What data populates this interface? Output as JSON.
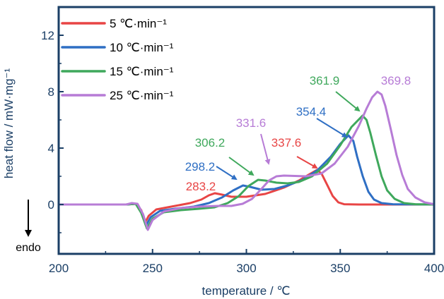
{
  "chart_data": {
    "type": "line",
    "xlabel": "temperature / ℃",
    "ylabel": "heat flow / mW·mg⁻¹",
    "xlim": [
      200,
      400
    ],
    "ylim": [
      -3.5,
      14
    ],
    "x_ticks": [
      "200",
      "250",
      "300",
      "350",
      "400"
    ],
    "y_ticks": [
      "0",
      "4",
      "8",
      "12"
    ],
    "grid": false,
    "legend_position": "top-left",
    "endo_label": "endo",
    "colors": {
      "axis": "#1b3f66",
      "s5": "#e84545",
      "s10": "#2f6fc4",
      "s15": "#3fa85c",
      "s25": "#b77cd6"
    },
    "series": [
      {
        "name": "5 ℃·min⁻¹",
        "color": "#e84545",
        "points": [
          [
            200,
            0
          ],
          [
            236,
            0
          ],
          [
            241,
            0.05
          ],
          [
            244,
            -0.4
          ],
          [
            246,
            -1.3
          ],
          [
            248,
            -0.8
          ],
          [
            252,
            -0.35
          ],
          [
            260,
            -0.15
          ],
          [
            270,
            0.1
          ],
          [
            276,
            0.35
          ],
          [
            280,
            0.65
          ],
          [
            283.2,
            0.8
          ],
          [
            287,
            0.7
          ],
          [
            292,
            0.55
          ],
          [
            300,
            0.55
          ],
          [
            310,
            0.75
          ],
          [
            320,
            1.2
          ],
          [
            328,
            1.7
          ],
          [
            333,
            2.1
          ],
          [
            337.6,
            2.45
          ],
          [
            340,
            2.2
          ],
          [
            343,
            1.4
          ],
          [
            346,
            0.6
          ],
          [
            349,
            0.15
          ],
          [
            352,
            0.02
          ],
          [
            360,
            0
          ],
          [
            400,
            0
          ]
        ]
      },
      {
        "name": "10 ℃·min⁻¹",
        "color": "#2f6fc4",
        "points": [
          [
            200,
            0
          ],
          [
            236,
            0
          ],
          [
            241,
            0.05
          ],
          [
            244,
            -0.5
          ],
          [
            246.5,
            -1.5
          ],
          [
            249,
            -0.9
          ],
          [
            254,
            -0.45
          ],
          [
            262,
            -0.3
          ],
          [
            272,
            -0.15
          ],
          [
            280,
            0.1
          ],
          [
            287,
            0.5
          ],
          [
            293,
            1
          ],
          [
            298.2,
            1.35
          ],
          [
            302,
            1.25
          ],
          [
            308,
            1.05
          ],
          [
            315,
            1.1
          ],
          [
            322,
            1.35
          ],
          [
            330,
            1.75
          ],
          [
            338,
            2.45
          ],
          [
            345,
            3.4
          ],
          [
            350,
            4.3
          ],
          [
            354.4,
            4.9
          ],
          [
            357,
            4.5
          ],
          [
            359,
            3.4
          ],
          [
            362,
            2
          ],
          [
            365,
            0.9
          ],
          [
            368,
            0.35
          ],
          [
            372,
            0.1
          ],
          [
            378,
            0.02
          ],
          [
            400,
            0
          ]
        ]
      },
      {
        "name": "15 ℃·min⁻¹",
        "color": "#3fa85c",
        "points": [
          [
            200,
            0
          ],
          [
            236,
            0
          ],
          [
            241,
            0.05
          ],
          [
            244,
            -0.6
          ],
          [
            247,
            -1.7
          ],
          [
            250,
            -1
          ],
          [
            256,
            -0.55
          ],
          [
            265,
            -0.4
          ],
          [
            275,
            -0.3
          ],
          [
            283,
            -0.2
          ],
          [
            290,
            0.1
          ],
          [
            296,
            0.6
          ],
          [
            301,
            1.3
          ],
          [
            306.2,
            1.75
          ],
          [
            310,
            1.7
          ],
          [
            316,
            1.55
          ],
          [
            322,
            1.5
          ],
          [
            328,
            1.6
          ],
          [
            335,
            2
          ],
          [
            343,
            2.9
          ],
          [
            350,
            4.2
          ],
          [
            356,
            5.5
          ],
          [
            361.9,
            6.3
          ],
          [
            364,
            6
          ],
          [
            366,
            5.1
          ],
          [
            369,
            3.5
          ],
          [
            372,
            2
          ],
          [
            375,
            1
          ],
          [
            379,
            0.4
          ],
          [
            384,
            0.1
          ],
          [
            390,
            0.02
          ],
          [
            400,
            0
          ]
        ]
      },
      {
        "name": "25 ℃·min⁻¹",
        "color": "#b77cd6",
        "points": [
          [
            200,
            0
          ],
          [
            236,
            0
          ],
          [
            239,
            0.1
          ],
          [
            242,
            0.05
          ],
          [
            245,
            -0.7
          ],
          [
            247.5,
            -1.8
          ],
          [
            250,
            -1.1
          ],
          [
            256,
            -0.5
          ],
          [
            265,
            -0.25
          ],
          [
            275,
            -0.15
          ],
          [
            285,
            -0.1
          ],
          [
            292,
            -0.1
          ],
          [
            298,
            0.05
          ],
          [
            303,
            0.4
          ],
          [
            308,
            1.1
          ],
          [
            312,
            1.7
          ],
          [
            316,
            2
          ],
          [
            320,
            2.05
          ],
          [
            331.6,
            2
          ],
          [
            340,
            2.2
          ],
          [
            347,
            2.9
          ],
          [
            354,
            4.1
          ],
          [
            360,
            5.6
          ],
          [
            364,
            6.8
          ],
          [
            367,
            7.6
          ],
          [
            369.8,
            8
          ],
          [
            372,
            7.8
          ],
          [
            374,
            7
          ],
          [
            377,
            5.3
          ],
          [
            380,
            3.5
          ],
          [
            383,
            2.1
          ],
          [
            386,
            1.1
          ],
          [
            390,
            0.5
          ],
          [
            395,
            0.15
          ],
          [
            400,
            0.02
          ]
        ]
      }
    ],
    "annotations": [
      {
        "text": "283.2",
        "series": 0,
        "arrow": false
      },
      {
        "text": "298.2",
        "series": 1,
        "arrow": true
      },
      {
        "text": "306.2",
        "series": 2,
        "arrow": true
      },
      {
        "text": "331.6",
        "series": 3,
        "arrow": true
      },
      {
        "text": "337.6",
        "series": 0,
        "arrow": true
      },
      {
        "text": "354.4",
        "series": 1,
        "arrow": true
      },
      {
        "text": "361.9",
        "series": 2,
        "arrow": true
      },
      {
        "text": "369.8",
        "series": 3,
        "arrow": true
      }
    ]
  }
}
